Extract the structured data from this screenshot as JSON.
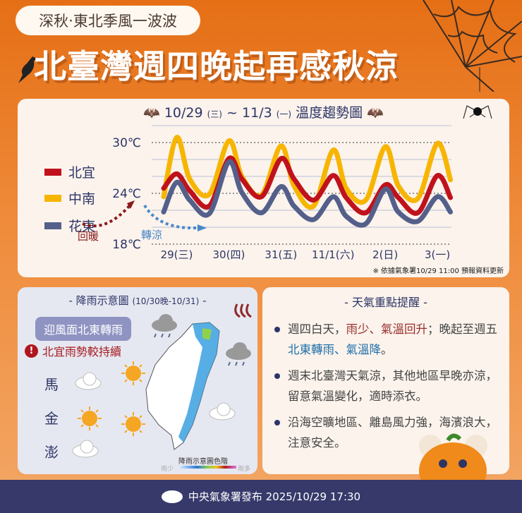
{
  "header": {
    "tag": "深秋‧東北季風一波波",
    "title": "北臺灣週四晚起再感秋涼"
  },
  "chart_card": {
    "date_from": "10/29",
    "dow_from": "(三)",
    "sep": "~",
    "date_to": "11/3",
    "dow_to": "(一)",
    "title": "溫度趨勢圖",
    "note": "※ 依據氣象署10/29 11:00 預報資料更新",
    "warm_label": "回暖",
    "cool_label": "轉涼"
  },
  "chart_data": {
    "type": "line",
    "title": "10/29 (三) ~ 11/3 (一) 溫度趨勢圖",
    "ylim": [
      18,
      32
    ],
    "yticks": [
      {
        "value": 18,
        "label": "18℃"
      },
      {
        "value": 24,
        "label": "24℃"
      },
      {
        "value": 30,
        "label": "30℃"
      }
    ],
    "xticks": [
      {
        "date": "10/29 14:00",
        "label": "29(三)"
      },
      {
        "date": "10/30 14:00",
        "label": "30(四)"
      },
      {
        "date": "10/31 14:00",
        "label": "31(五)"
      },
      {
        "date": "11/1 14:00",
        "label": "11/1(六)"
      },
      {
        "date": "11/2 14:00",
        "label": "2(日)"
      },
      {
        "date": "11/3 14:00",
        "label": "3(一)"
      }
    ],
    "x": [
      "10/29 08:00",
      "10/29 14:00",
      "10/29 20:00",
      "10/30 05:00",
      "10/30 14:00",
      "10/30 20:00",
      "10/31 05:00",
      "10/31 14:00",
      "10/31 20:00",
      "11/1 05:00",
      "11/1 14:00",
      "11/1 20:00",
      "11/2 05:00",
      "11/2 14:00",
      "11/2 20:00",
      "11/3 05:00",
      "11/3 14:00",
      "11/3 20:00"
    ],
    "grid": true,
    "legend": "left",
    "series": [
      {
        "name": "北宜",
        "color": "#c0121c",
        "values": [
          24.6,
          26.3,
          24.3,
          22.5,
          28.1,
          25.7,
          23.6,
          28.1,
          25.7,
          23.2,
          26.1,
          23.5,
          21.7,
          25,
          23.5,
          21.7,
          26.1,
          23.5
        ]
      },
      {
        "name": "中南",
        "color": "#f7b500",
        "values": [
          23.6,
          30.6,
          25.7,
          23.9,
          30.2,
          26,
          23.8,
          29.6,
          24.9,
          22.5,
          29.1,
          24.6,
          23.2,
          29.5,
          24.9,
          23.4,
          29.9,
          25.6
        ]
      },
      {
        "name": "花東",
        "color": "#54608a",
        "values": [
          21.8,
          25.3,
          23.2,
          21.6,
          27.7,
          24.1,
          21.7,
          24.8,
          22.5,
          20.9,
          23.6,
          21.3,
          20.4,
          24.5,
          21.8,
          20.7,
          23.6,
          21.8
        ]
      }
    ]
  },
  "rain_card": {
    "title": "- 降雨示意圖",
    "range": "(10/30晚-10/31)",
    "title_end": "-",
    "tag": "迎風面北東轉雨",
    "warning": "北宜雨勢較持續",
    "islands": [
      "馬",
      "金",
      "澎"
    ],
    "scale_title": "降雨示意圖色階",
    "scale_low": "雨少",
    "scale_high": "雨多"
  },
  "tips_card": {
    "title": "- 天氣重點提醒 -",
    "tip1": {
      "a": "週四白天，",
      "b": "雨少、氣溫回升",
      "c": "；晚起至週五",
      "d": "北東轉雨、氣溫降",
      "e": "。"
    },
    "tip2": "週末北臺灣天氣涼，其他地區早晚亦涼，留意氣溫變化，適時添衣。",
    "tip3": "沿海空曠地區、離島風力強，海濱浪大，注意安全。"
  },
  "footer": {
    "text": "中央氣象署發布 2025/10/29 17:30"
  }
}
